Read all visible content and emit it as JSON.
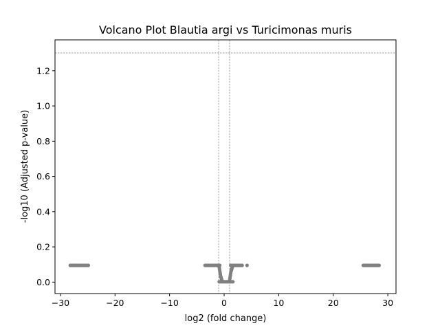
{
  "chart_data": {
    "type": "scatter",
    "title": "Volcano Plot Blautia argi vs Turicimonas muris",
    "xlabel": "log2 (fold change)",
    "ylabel": "-log10 (Adjusted p-value)",
    "xlim": [
      -31,
      31.5
    ],
    "ylim": [
      -0.065,
      1.375
    ],
    "xticks": [
      -30,
      -20,
      -10,
      0,
      10,
      20,
      30
    ],
    "xtick_labels": [
      "−30",
      "−20",
      "−10",
      "0",
      "10",
      "20",
      "30"
    ],
    "yticks": [
      0.0,
      0.2,
      0.4,
      0.6,
      0.8,
      1.0,
      1.2
    ],
    "ytick_labels": [
      "0.0",
      "0.2",
      "0.4",
      "0.6",
      "0.8",
      "1.0",
      "1.2"
    ],
    "threshold_lines": {
      "horizontal": [
        1.301
      ],
      "vertical": [
        -1,
        1
      ],
      "style": "dashed",
      "color": "#808080"
    },
    "marker_color": "#808080",
    "grid": false,
    "legend": "none",
    "series": [
      {
        "x": [
          -28.2,
          -27.9,
          -27.6,
          -27.3,
          -27.0,
          -26.7,
          -26.4,
          -26.1,
          -25.8,
          -25.5,
          -25.2,
          -24.9,
          -3.5,
          -3.2,
          -2.9,
          -2.6,
          -2.3,
          -2.0,
          -1.7,
          -1.4,
          -1.2,
          -1.0,
          -0.8,
          -0.9,
          -0.85,
          -0.8,
          -0.75,
          -0.7,
          -0.65,
          -0.6,
          -0.55,
          -0.5,
          -0.45,
          -0.4,
          -0.9,
          -0.7,
          -0.5,
          -0.3,
          -0.1,
          0.1,
          0.3,
          0.5,
          0.7,
          0.9,
          1.1,
          1.3,
          1.5,
          1.6,
          1.0,
          1.05,
          1.1,
          1.15,
          1.2,
          1.25,
          1.3,
          1.35,
          1.4,
          1.45,
          1.5,
          1.2,
          1.5,
          1.8,
          2.1,
          2.4,
          2.7,
          3.0,
          3.3,
          4.2,
          25.5,
          25.8,
          26.1,
          26.4,
          26.7,
          27.0,
          27.3,
          27.6,
          27.9,
          28.2,
          28.4
        ],
        "y": [
          0.095,
          0.095,
          0.095,
          0.095,
          0.095,
          0.095,
          0.095,
          0.095,
          0.095,
          0.095,
          0.095,
          0.095,
          0.095,
          0.095,
          0.095,
          0.095,
          0.095,
          0.095,
          0.095,
          0.095,
          0.095,
          0.095,
          0.095,
          0.085,
          0.075,
          0.065,
          0.055,
          0.045,
          0.035,
          0.03,
          0.025,
          0.02,
          0.015,
          0.01,
          0.002,
          0.002,
          0.002,
          0.002,
          0.002,
          0.002,
          0.002,
          0.002,
          0.002,
          0.002,
          0.002,
          0.002,
          0.002,
          0.002,
          0.01,
          0.02,
          0.03,
          0.04,
          0.05,
          0.06,
          0.065,
          0.07,
          0.075,
          0.08,
          0.085,
          0.095,
          0.095,
          0.095,
          0.095,
          0.095,
          0.095,
          0.095,
          0.095,
          0.095,
          0.095,
          0.095,
          0.095,
          0.095,
          0.095,
          0.095,
          0.095,
          0.095,
          0.095,
          0.095,
          0.095
        ]
      }
    ]
  }
}
